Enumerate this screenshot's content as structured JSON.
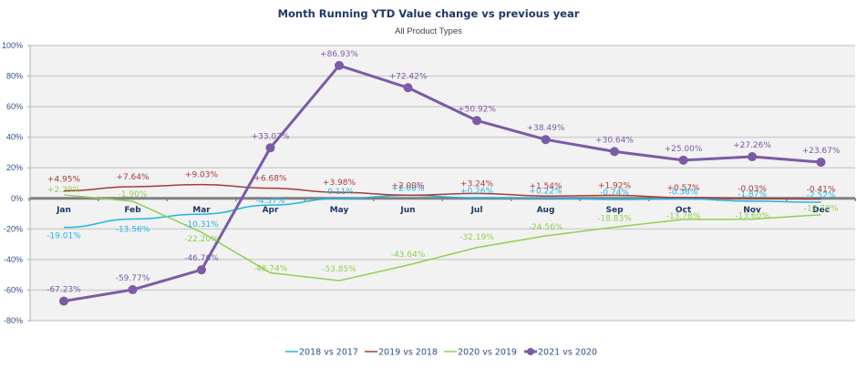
{
  "chart_data": {
    "type": "line",
    "title": "Month Running YTD Value change vs previous year",
    "subtitle": "All Product Types",
    "xlabel": "",
    "ylabel": "",
    "categories": [
      "Jan",
      "Feb",
      "Mar",
      "Apr",
      "May",
      "Jun",
      "Jul",
      "Aug",
      "Sep",
      "Oct",
      "Nov",
      "Dec"
    ],
    "ylim": [
      -80,
      100
    ],
    "yticks": [
      100,
      80,
      60,
      40,
      20,
      0,
      -20,
      -40,
      -60,
      -80
    ],
    "ytick_labels": [
      "100%",
      "80%",
      "60%",
      "40%",
      "20%",
      "0%",
      "-20%",
      "-40%",
      "-60%",
      "-80%"
    ],
    "grid": true,
    "legend_position": "bottom",
    "series": [
      {
        "name": "2018 vs 2017",
        "color": "#1fb5e8",
        "markers": false,
        "values": [
          -19.01,
          -13.56,
          -10.31,
          -4.37,
          -0.11,
          2.0,
          0.26,
          0.22,
          -0.74,
          -0.36,
          -1.87,
          -2.52
        ],
        "labels": [
          "-19.01%",
          "-13.56%",
          "-10.31%",
          "-4.37%",
          "-0.11%",
          "+2.00%",
          "+0.26%",
          "+0.22%",
          "-0.74%",
          "-0.36%",
          "-1.87%",
          "-2.52%"
        ]
      },
      {
        "name": "2019 vs 2018",
        "color": "#a83a3a",
        "markers": false,
        "values": [
          4.95,
          7.64,
          9.03,
          6.68,
          3.98,
          2.0,
          3.24,
          1.54,
          1.92,
          0.57,
          -0.03,
          -0.41
        ],
        "labels": [
          "+4.95%",
          "+7.64%",
          "+9.03%",
          "+6.68%",
          "+3.98%",
          "+2.00%",
          "+3.24%",
          "+1.54%",
          "+1.92%",
          "+0.57%",
          "-0.03%",
          "-0.41%"
        ]
      },
      {
        "name": "2020 vs 2019",
        "color": "#8fd14f",
        "markers": false,
        "values": [
          2.29,
          -1.9,
          -22.2,
          -48.74,
          -53.85,
          -43.64,
          -32.19,
          -24.56,
          -18.83,
          -13.78,
          -13.6,
          -10.7
        ],
        "labels": [
          "+2.29%",
          "-1.90%",
          "-22.20%",
          "-48.74%",
          "-53.85%",
          "-43.64%",
          "-32.19%",
          "-24.56%",
          "-18.83%",
          "-13.78%",
          "-13.60%",
          "-10.70%"
        ]
      },
      {
        "name": "2021 vs 2020",
        "color": "#7b5aa6",
        "markers": true,
        "values": [
          -67.23,
          -59.77,
          -46.76,
          33.07,
          86.93,
          72.42,
          50.92,
          38.49,
          30.64,
          25.0,
          27.26,
          23.67
        ],
        "labels": [
          "-67.23%",
          "-59.77%",
          "-46.76%",
          "+33.07%",
          "+86.93%",
          "+72.42%",
          "+50.92%",
          "+38.49%",
          "+30.64%",
          "+25.00%",
          "+27.26%",
          "+23.67%"
        ]
      }
    ]
  }
}
